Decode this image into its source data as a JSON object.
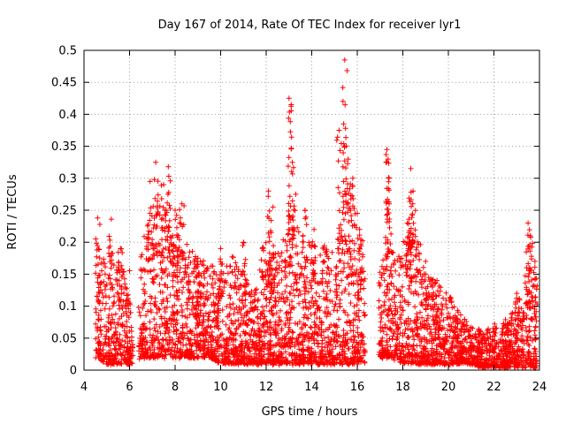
{
  "chart_data": {
    "type": "scatter",
    "title": "Day 167 of 2014, Rate Of TEC Index for receiver lyr1",
    "xlabel": "GPS time / hours",
    "ylabel": "ROTI / TECUs",
    "xlim": [
      4,
      24
    ],
    "ylim": [
      0,
      0.5
    ],
    "grid": true,
    "marker": "plus",
    "color": "#ff0000",
    "x_ticks": [
      "4",
      "6",
      "8",
      "10",
      "12",
      "14",
      "16",
      "18",
      "20",
      "22",
      "24"
    ],
    "y_ticks": [
      "0",
      "0.05",
      "0.1",
      "0.15",
      "0.2",
      "0.25",
      "0.3",
      "0.35",
      "0.4",
      "0.45",
      "0.5"
    ],
    "x_tick_values": [
      4,
      6,
      8,
      10,
      12,
      14,
      16,
      18,
      20,
      22,
      24
    ],
    "y_tick_values": [
      0,
      0.05,
      0.1,
      0.15,
      0.2,
      0.25,
      0.3,
      0.35,
      0.4,
      0.45,
      0.5
    ],
    "envelope": {
      "description": "Approximate upper/lower envelope of the dense point cloud (hours, TECU)",
      "x": [
        4.5,
        5.0,
        5.5,
        6.0,
        6.2,
        6.5,
        7.0,
        7.5,
        8.0,
        8.5,
        9.0,
        9.5,
        10.0,
        10.5,
        11.0,
        11.5,
        12.0,
        12.5,
        13.0,
        13.5,
        14.0,
        14.5,
        15.0,
        15.5,
        16.0,
        16.3,
        16.7,
        17.0,
        17.5,
        18.0,
        18.5,
        19.0,
        19.5,
        20.0,
        20.5,
        21.0,
        21.5,
        22.0,
        22.5,
        23.0,
        23.5,
        23.9
      ],
      "upper": [
        0.2,
        0.19,
        0.17,
        0.16,
        0.03,
        0.22,
        0.27,
        0.26,
        0.22,
        0.2,
        0.18,
        0.16,
        0.17,
        0.18,
        0.15,
        0.13,
        0.22,
        0.18,
        0.25,
        0.22,
        0.2,
        0.2,
        0.18,
        0.3,
        0.25,
        0.2,
        0.03,
        0.17,
        0.2,
        0.2,
        0.24,
        0.16,
        0.14,
        0.12,
        0.09,
        0.07,
        0.06,
        0.07,
        0.08,
        0.1,
        0.17,
        0.15
      ],
      "lower": [
        0.02,
        0.01,
        0.01,
        0.01,
        0.01,
        0.02,
        0.02,
        0.02,
        0.02,
        0.02,
        0.02,
        0.02,
        0.01,
        0.01,
        0.01,
        0.01,
        0.01,
        0.01,
        0.01,
        0.01,
        0.01,
        0.01,
        0.01,
        0.01,
        0.01,
        0.01,
        0.01,
        0.02,
        0.02,
        0.01,
        0.01,
        0.01,
        0.01,
        0.01,
        0.01,
        0.01,
        0.005,
        0.005,
        0.005,
        0.005,
        0.005,
        0.005
      ]
    },
    "gaps": [
      [
        6.15,
        6.4
      ],
      [
        16.35,
        16.95
      ]
    ],
    "peaks": [
      {
        "x": 4.6,
        "y": 0.238
      },
      {
        "x": 5.2,
        "y": 0.236
      },
      {
        "x": 5.6,
        "y": 0.19
      },
      {
        "x": 6.9,
        "y": 0.295
      },
      {
        "x": 7.15,
        "y": 0.325
      },
      {
        "x": 7.5,
        "y": 0.29
      },
      {
        "x": 7.7,
        "y": 0.318
      },
      {
        "x": 8.0,
        "y": 0.25
      },
      {
        "x": 8.3,
        "y": 0.26
      },
      {
        "x": 9.0,
        "y": 0.175
      },
      {
        "x": 10.0,
        "y": 0.19
      },
      {
        "x": 11.0,
        "y": 0.2
      },
      {
        "x": 12.1,
        "y": 0.28
      },
      {
        "x": 12.3,
        "y": 0.255
      },
      {
        "x": 13.0,
        "y": 0.425
      },
      {
        "x": 13.1,
        "y": 0.415
      },
      {
        "x": 13.15,
        "y": 0.325
      },
      {
        "x": 13.3,
        "y": 0.275
      },
      {
        "x": 13.7,
        "y": 0.25
      },
      {
        "x": 14.1,
        "y": 0.22
      },
      {
        "x": 15.2,
        "y": 0.375
      },
      {
        "x": 15.4,
        "y": 0.385
      },
      {
        "x": 15.45,
        "y": 0.485
      },
      {
        "x": 15.6,
        "y": 0.33
      },
      {
        "x": 15.8,
        "y": 0.3
      },
      {
        "x": 16.1,
        "y": 0.22
      },
      {
        "x": 17.3,
        "y": 0.345
      },
      {
        "x": 17.35,
        "y": 0.33
      },
      {
        "x": 17.4,
        "y": 0.26
      },
      {
        "x": 18.35,
        "y": 0.315
      },
      {
        "x": 18.45,
        "y": 0.28
      },
      {
        "x": 18.2,
        "y": 0.23
      },
      {
        "x": 19.0,
        "y": 0.17
      },
      {
        "x": 19.5,
        "y": 0.14
      },
      {
        "x": 20.3,
        "y": 0.085
      },
      {
        "x": 21.4,
        "y": 0.06
      },
      {
        "x": 22.5,
        "y": 0.07
      },
      {
        "x": 23.0,
        "y": 0.12
      },
      {
        "x": 23.5,
        "y": 0.23
      },
      {
        "x": 23.6,
        "y": 0.21
      },
      {
        "x": 23.8,
        "y": 0.17
      }
    ],
    "scatter_seed": 167,
    "scatter_count": 4200
  }
}
